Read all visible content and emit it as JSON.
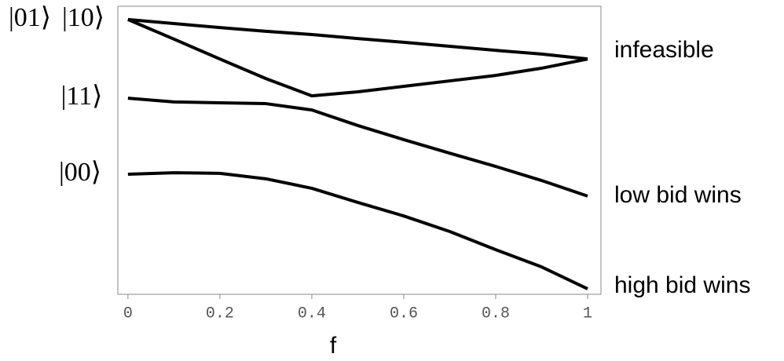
{
  "chart_data": {
    "type": "line",
    "x_label": "f",
    "x": [
      0,
      0.1,
      0.2,
      0.3,
      0.4,
      0.5,
      0.6,
      0.7,
      0.8,
      0.9,
      1
    ],
    "series": [
      {
        "color": "#000000",
        "values": [
          0.954,
          0.94,
          0.926,
          0.913,
          0.902,
          0.888,
          0.875,
          0.861,
          0.847,
          0.834,
          0.817
        ]
      },
      {
        "color": "#000000",
        "values": [
          0.954,
          0.886,
          0.817,
          0.749,
          0.689,
          0.703,
          0.722,
          0.741,
          0.76,
          0.785,
          0.817
        ]
      },
      {
        "color": "#000000",
        "values": [
          0.681,
          0.668,
          0.665,
          0.662,
          0.64,
          0.586,
          0.537,
          0.49,
          0.444,
          0.395,
          0.341
        ]
      },
      {
        "color": "#000000",
        "values": [
          0.417,
          0.422,
          0.42,
          0.401,
          0.368,
          0.319,
          0.272,
          0.218,
          0.155,
          0.095,
          0.019
        ]
      }
    ],
    "xlim": [
      -0.022,
      1.029
    ],
    "ylim": [
      0,
      1
    ],
    "xticks": [
      0,
      0.2,
      0.4,
      0.6,
      0.8,
      1
    ],
    "left_labels": [
      "|01⟩",
      "|10⟩",
      "|11⟩",
      "|00⟩"
    ],
    "right_labels": [
      "infeasible",
      "low bid wins",
      "high bid wins"
    ]
  }
}
